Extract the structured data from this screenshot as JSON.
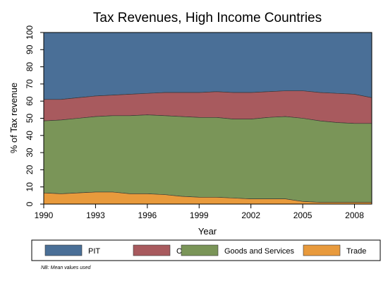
{
  "chart_data": {
    "type": "area",
    "stacked": true,
    "title": "Tax Revenues, High Income Countries",
    "xlabel": "Year",
    "ylabel": "% of Tax revenue",
    "xlim": [
      1990,
      2009
    ],
    "ylim": [
      0,
      100
    ],
    "xticks": [
      1990,
      1993,
      1996,
      1999,
      2002,
      2005,
      2008
    ],
    "yticks": [
      0,
      10,
      20,
      30,
      40,
      50,
      60,
      70,
      80,
      90,
      100
    ],
    "x": [
      1990,
      1991,
      1992,
      1993,
      1994,
      1995,
      1996,
      1997,
      1998,
      1999,
      2000,
      2001,
      2002,
      2003,
      2004,
      2005,
      2006,
      2007,
      2008,
      2009
    ],
    "series": [
      {
        "name": "PIT",
        "color": "#4A6F97",
        "values": [
          39,
          39,
          38,
          37,
          36.5,
          36,
          35.5,
          35,
          35,
          35,
          34.5,
          35,
          35,
          34.5,
          34,
          34,
          35,
          35.5,
          36,
          38
        ]
      },
      {
        "name": "CIT",
        "color": "#A85A5E",
        "values": [
          12.5,
          12,
          12,
          12,
          12,
          12.5,
          12.5,
          13.5,
          14,
          14.5,
          15,
          15.5,
          15.5,
          15,
          15,
          16,
          16.5,
          17,
          17,
          15
        ]
      },
      {
        "name": "Goods and Services",
        "color": "#7A9558",
        "values": [
          42,
          43,
          43.5,
          44,
          44.5,
          45.5,
          46,
          46,
          46.5,
          46.5,
          46.5,
          46,
          46.5,
          47.5,
          48,
          48.5,
          47.5,
          46.5,
          46,
          46
        ]
      },
      {
        "name": "Trade",
        "color": "#E89A3C",
        "values": [
          6.5,
          6,
          6.5,
          7,
          7,
          6,
          6,
          5.5,
          4.5,
          4,
          4,
          3.5,
          3,
          3,
          3,
          1.5,
          1,
          1,
          1,
          1
        ]
      }
    ],
    "legend": {
      "placement": "bottom"
    },
    "note": "NB: Mean values used",
    "colors": {
      "plot_background": "#ffffff",
      "outline": "#000000"
    }
  }
}
